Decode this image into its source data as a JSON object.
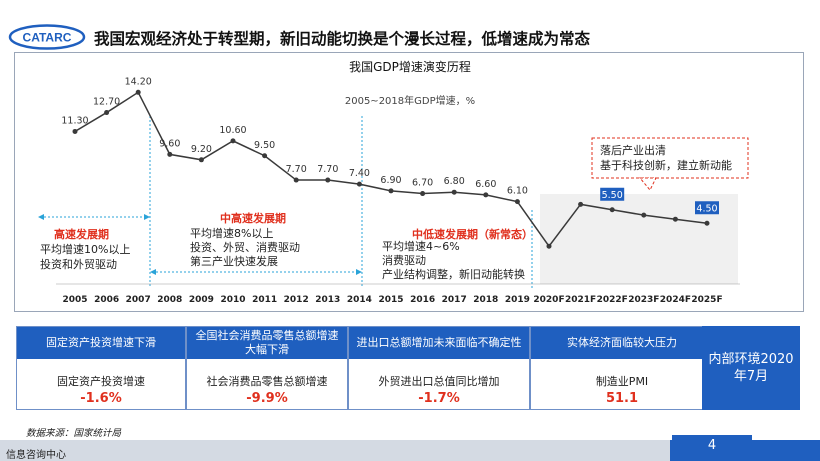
{
  "logo_text": "CATARC",
  "page_title": "我国宏观经济处于转型期，新旧动能切换是个漫长过程，低增速成为常态",
  "chart_data": {
    "type": "line",
    "title": "我国GDP增速演变历程",
    "subtitle": "2005~2018年GDP增速，%",
    "categories": [
      "2005",
      "2006",
      "2007",
      "2008",
      "2009",
      "2010",
      "2011",
      "2012",
      "2013",
      "2014",
      "2015",
      "2016",
      "2017",
      "2018",
      "2019",
      "2020F",
      "2021F",
      "2022F",
      "2023F",
      "2024F",
      "2025F"
    ],
    "series": [
      {
        "values": [
          11.3,
          12.7,
          14.2,
          9.6,
          9.2,
          10.6,
          9.5,
          7.7,
          7.7,
          7.4,
          6.9,
          6.7,
          6.8,
          6.6,
          6.1,
          null,
          null,
          null,
          null,
          null,
          null
        ]
      },
      {
        "values": [
          null,
          null,
          null,
          null,
          null,
          null,
          null,
          null,
          null,
          null,
          null,
          null,
          null,
          null,
          6.1,
          2.8,
          5.9,
          5.5,
          5.1,
          4.8,
          4.5
        ]
      }
    ],
    "data_labels": [
      "11.30",
      "12.70",
      "14.20",
      "9.60",
      "9.20",
      "10.60",
      "9.50",
      "7.70",
      "7.70",
      "7.40",
      "6.90",
      "6.70",
      "6.80",
      "6.60",
      "6.10"
    ],
    "forecast_labels": [
      {
        "index": 17,
        "text": "5.50"
      },
      {
        "index": 20,
        "text": "4.50"
      }
    ],
    "ylim": [
      0,
      16
    ],
    "grid": false,
    "annotations": {
      "period1": {
        "title": "高速发展期",
        "lines": [
          "平均增速10%以上",
          "投资和外贸驱动"
        ]
      },
      "period2": {
        "title": "中高速发展期",
        "lines": [
          "平均增速8%以上",
          "投资、外贸、消费驱动",
          "第三产业快速发展"
        ]
      },
      "period3": {
        "title": "中低速发展期（新常态）",
        "lines": [
          "平均增速4~6%",
          "消费驱动",
          "产业结构调整，新旧动能转换"
        ]
      },
      "callout": [
        "落后产业出清",
        "基于科技创新，建立新动能"
      ]
    }
  },
  "indicators": [
    {
      "header": "固定资产投资增速下滑",
      "label": "固定资产投资增速",
      "value": "-1.6%"
    },
    {
      "header": "全国社会消费品零售总额增速大幅下滑",
      "label": "社会消费品零售总额增速",
      "value": "-9.9%"
    },
    {
      "header": "进出口总额增加未来面临不确定性",
      "label": "外贸进出口总值同比增加",
      "value": "-1.7%"
    },
    {
      "header": "实体经济面临较大压力",
      "label": "制造业PMI",
      "value": "51.1"
    }
  ],
  "env_box": "内部环境2020年7月",
  "source": "数据来源：国家统计局",
  "footer_text": "信息咨询中心",
  "page_number": "4",
  "colors": {
    "accent": "#1f5fbf",
    "highlight": "#e0301e",
    "line": "#3a3a3a",
    "dashed_divider": "#2aa3d8"
  }
}
